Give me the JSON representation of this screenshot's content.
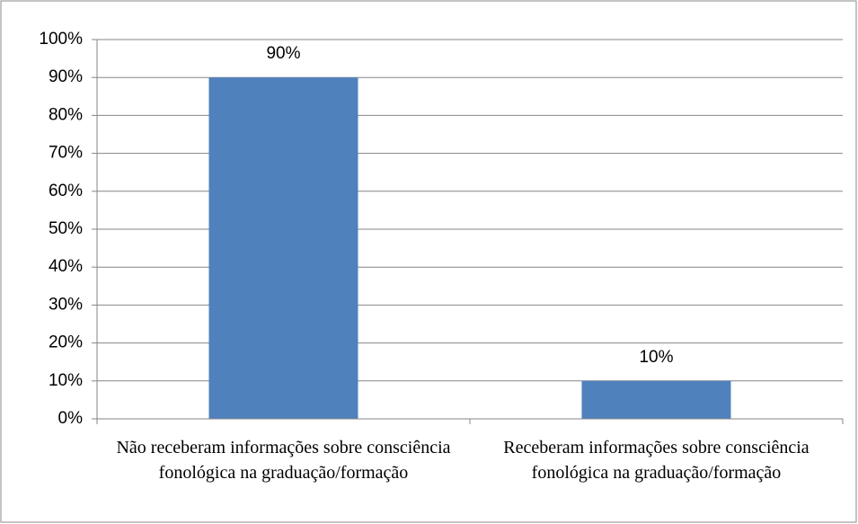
{
  "chart_data": {
    "type": "bar",
    "categories": [
      "Não receberam informações sobre consciência fonológica na graduação/formação",
      "Receberam informações sobre consciência fonológica na graduação/formação"
    ],
    "values": [
      90,
      10
    ],
    "value_labels": [
      "90%",
      "10%"
    ],
    "color": "#4f81bd",
    "ylim": [
      0,
      100
    ],
    "yticks": [
      {
        "value": 0,
        "label": "0%"
      },
      {
        "value": 10,
        "label": "10%"
      },
      {
        "value": 20,
        "label": "20%"
      },
      {
        "value": 30,
        "label": "30%"
      },
      {
        "value": 40,
        "label": "40%"
      },
      {
        "value": 50,
        "label": "50%"
      },
      {
        "value": 60,
        "label": "60%"
      },
      {
        "value": 70,
        "label": "70%"
      },
      {
        "value": 80,
        "label": "80%"
      },
      {
        "value": 90,
        "label": "90%"
      },
      {
        "value": 100,
        "label": "100%"
      }
    ],
    "grid": true
  }
}
